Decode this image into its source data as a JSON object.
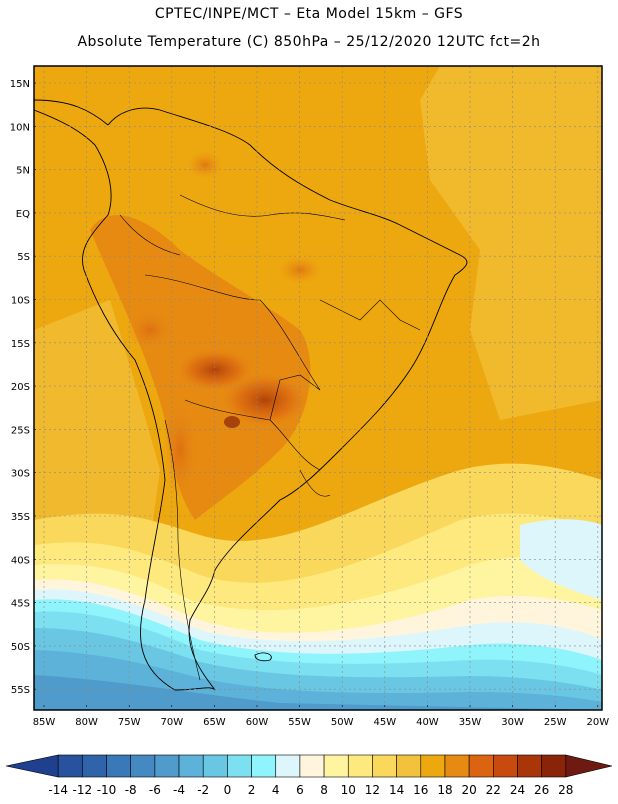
{
  "header": {
    "line1": "CPTEC/INPE/MCT –  Eta Model 15km – GFS",
    "line2": "Absolute Temperature (C) 850hPa – 25/12/2020 12UTC fct=2h"
  },
  "map": {
    "lat_labels": [
      "15N",
      "10N",
      "5N",
      "EQ",
      "5S",
      "10S",
      "15S",
      "20S",
      "25S",
      "30S",
      "35S",
      "40S",
      "45S",
      "50S",
      "55S"
    ],
    "lon_labels": [
      "85W",
      "80W",
      "75W",
      "70W",
      "65W",
      "60W",
      "55W",
      "50W",
      "45W",
      "40W",
      "35W",
      "30W",
      "25W",
      "20W"
    ]
  },
  "colorbar": {
    "ticks": [
      "-14",
      "-12",
      "-10",
      "-8",
      "-6",
      "-4",
      "-2",
      "0",
      "2",
      "4",
      "6",
      "8",
      "10",
      "12",
      "14",
      "16",
      "18",
      "20",
      "22",
      "24",
      "26",
      "28"
    ],
    "colors": [
      "#1f3f8f",
      "#28519e",
      "#2f64ab",
      "#3a79b8",
      "#4489c2",
      "#4f9bcc",
      "#5cb2d9",
      "#69c7e3",
      "#7ce0f0",
      "#8ff4fb",
      "#ddf6fb",
      "#fff5dc",
      "#fff4a0",
      "#fde97d",
      "#f9d85c",
      "#f2c23c",
      "#eea80f",
      "#e68a12",
      "#db6410",
      "#c84a0e",
      "#a83608",
      "#8a2408",
      "#6e1a10"
    ]
  }
}
